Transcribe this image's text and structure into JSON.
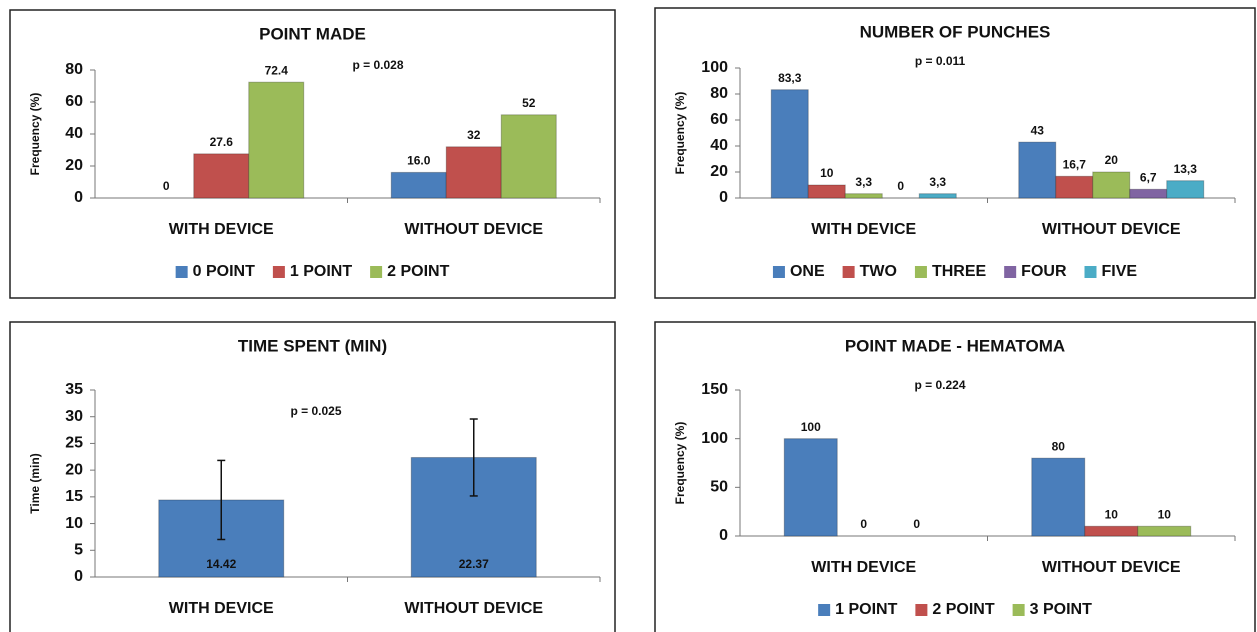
{
  "chart_data": [
    {
      "type": "bar",
      "title": "POINT MADE",
      "y_label": "Frequency (%)",
      "annotation": "p = 0.028",
      "categories": [
        "WITH DEVICE",
        "WITHOUT DEVICE"
      ],
      "ylim": [
        0,
        80
      ],
      "yticks": [
        0,
        20,
        40,
        60,
        80
      ],
      "series": [
        {
          "name": "0 POINT",
          "color": "#4a7ebb",
          "values": [
            0,
            16
          ],
          "value_labels": [
            "0",
            "16.0"
          ]
        },
        {
          "name": "1 POINT",
          "color": "#c0504d",
          "values": [
            27.6,
            32
          ]
        },
        {
          "name": "2 POINT",
          "color": "#9bbb59",
          "values": [
            72.4,
            52
          ]
        }
      ]
    },
    {
      "type": "bar",
      "title": "NUMBER OF PUNCHES",
      "y_label": "Frequency (%)",
      "annotation": "p = 0.011",
      "categories": [
        "WITH DEVICE",
        "WITHOUT DEVICE"
      ],
      "ylim": [
        0,
        100
      ],
      "yticks": [
        0,
        20,
        40,
        60,
        80,
        100
      ],
      "series": [
        {
          "name": "ONE",
          "color": "#4a7ebb",
          "values": [
            83.3,
            43
          ],
          "value_labels": [
            "83,3",
            "43"
          ]
        },
        {
          "name": "TWO",
          "color": "#c0504d",
          "values": [
            10,
            16.7
          ],
          "value_labels": [
            "10",
            "16,7"
          ]
        },
        {
          "name": "THREE",
          "color": "#9bbb59",
          "values": [
            3.3,
            20
          ],
          "value_labels": [
            "3,3",
            "20"
          ]
        },
        {
          "name": "FOUR",
          "color": "#8064a2",
          "values": [
            0,
            6.7
          ],
          "value_labels": [
            "0",
            "6,7"
          ]
        },
        {
          "name": "FIVE",
          "color": "#4bacc6",
          "values": [
            3.3,
            13.3
          ],
          "value_labels": [
            "3,3",
            "13,3"
          ]
        }
      ]
    },
    {
      "type": "bar",
      "title": "TIME SPENT (MIN)",
      "y_label": "Time  (min)",
      "annotation": "p = 0.025",
      "categories": [
        "WITH DEVICE",
        "WITHOUT DEVICE"
      ],
      "ylim": [
        0,
        35
      ],
      "yticks": [
        0,
        5,
        10,
        15,
        20,
        25,
        30,
        35
      ],
      "series": [
        {
          "color": "#4a7ebb",
          "values": [
            14.42,
            22.37
          ],
          "errors": [
            7.4,
            7.2
          ]
        }
      ]
    },
    {
      "type": "bar",
      "title": "POINT MADE - HEMATOMA",
      "y_label": "Frequency  (%)",
      "annotation": "p = 0.224",
      "categories": [
        "WITH DEVICE",
        "WITHOUT DEVICE"
      ],
      "ylim": [
        0,
        150
      ],
      "yticks": [
        0,
        50,
        100,
        150
      ],
      "series": [
        {
          "name": "1 POINT",
          "color": "#4a7ebb",
          "values": [
            100,
            80
          ]
        },
        {
          "name": "2 POINT",
          "color": "#c0504d",
          "values": [
            0,
            10
          ]
        },
        {
          "name": "3 POINT",
          "color": "#9bbb59",
          "values": [
            0,
            10
          ]
        }
      ]
    }
  ]
}
